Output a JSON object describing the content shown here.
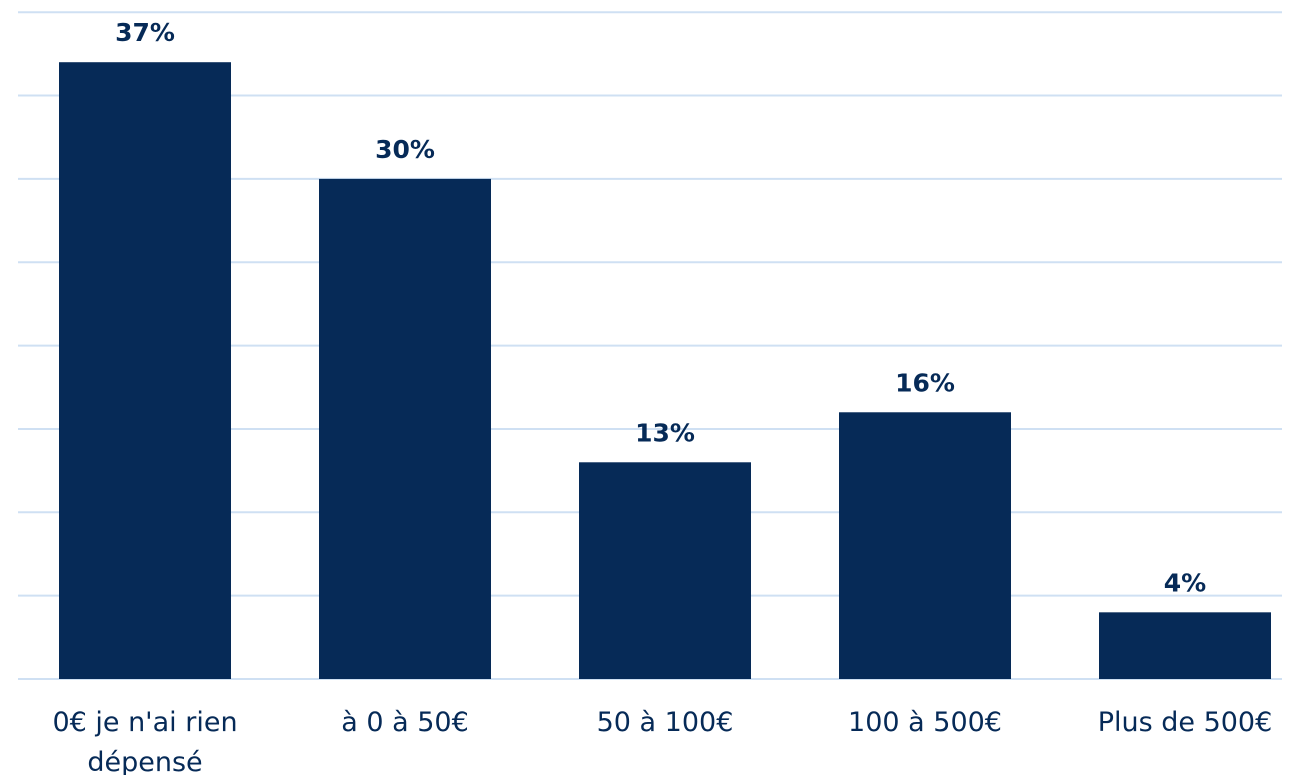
{
  "chart_data": {
    "type": "bar",
    "title": "",
    "xlabel": "",
    "ylabel": "",
    "categories": [
      [
        "0€ je n'ai rien",
        "dépensé"
      ],
      [
        "à 0 à 50€"
      ],
      [
        "50 à 100€"
      ],
      [
        "100 à 500€"
      ],
      [
        "Plus de 500€"
      ]
    ],
    "values": [
      37,
      30,
      13,
      16,
      4
    ],
    "value_labels": [
      "37%",
      "30%",
      "13%",
      "16%",
      "4%"
    ],
    "ylim": [
      0,
      40
    ],
    "grid": true,
    "legend": "none",
    "colors": {
      "bar": "#062a57",
      "grid": "#cfe0f3",
      "text": "#062a57"
    }
  }
}
